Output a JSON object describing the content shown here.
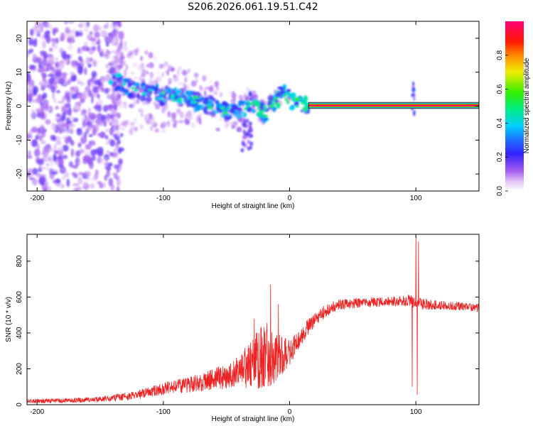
{
  "figure_title": "S206.2026.061.19.51.C42",
  "colors": {
    "snr_line": "#ee2222",
    "background": "#ffffff",
    "axis": "#000000"
  },
  "chart_data": [
    {
      "type": "heatmap",
      "title": "",
      "xlabel": "Height of straight line (km)",
      "ylabel": "Frequency (Hz)",
      "xlim": [
        -208,
        150
      ],
      "ylim": [
        -25,
        25
      ],
      "xticks": [
        -200,
        -100,
        0,
        100
      ],
      "xtick_labels": [
        "-200",
        "-100",
        "0",
        "100"
      ],
      "yticks": [
        20,
        10,
        0,
        -10,
        -20
      ],
      "ytick_labels": [
        "20",
        "10",
        "0",
        "-10",
        "-20"
      ],
      "colorbar": {
        "label": "Normalized spectral amplitude",
        "range": [
          0,
          1
        ],
        "ticks": [
          0.0,
          0.2,
          0.4,
          0.6,
          0.8
        ],
        "tick_labels": [
          "0.0",
          "0.2",
          "0.4",
          "0.6",
          "0.8"
        ]
      },
      "trace": {
        "x": [
          -140,
          -125,
          -110,
          -100,
          -90,
          -80,
          -70,
          -60,
          -50,
          -40,
          -35,
          -30,
          -25,
          -20,
          -15,
          -10,
          -5,
          0,
          5,
          10,
          15,
          150
        ],
        "freq": [
          8,
          5,
          4,
          3,
          3,
          2,
          1,
          0,
          -1,
          -2,
          0,
          2,
          -1,
          -2,
          0,
          2,
          4,
          2,
          1,
          0.5,
          0.2,
          0.2
        ]
      },
      "band": {
        "x_start": 15,
        "x_end": 150,
        "freq": 0.2,
        "half_width_hz": 0.9
      },
      "spike": {
        "x": 98,
        "freq_range": [
          -3,
          7
        ]
      }
    },
    {
      "type": "line",
      "title": "",
      "xlabel": "Height of straight line (km)",
      "ylabel": "SNR (10 * v/v)",
      "xlim": [
        -208,
        150
      ],
      "ylim": [
        0,
        950
      ],
      "xticks": [
        -200,
        -100,
        0,
        100
      ],
      "xtick_labels": [
        "-200",
        "-100",
        "0",
        "100"
      ],
      "yticks": [
        0,
        200,
        400,
        600,
        800
      ],
      "ytick_labels": [
        "0",
        "200",
        "400",
        "600",
        "800"
      ],
      "series": [
        {
          "name": "SNR",
          "envelope_x": [
            -208,
            -180,
            -150,
            -120,
            -100,
            -80,
            -60,
            -40,
            -30,
            -20,
            -10,
            0,
            10,
            20,
            30,
            40,
            60,
            80,
            90,
            95,
            105,
            110,
            120,
            150
          ],
          "envelope_mean": [
            20,
            22,
            30,
            55,
            90,
            110,
            140,
            180,
            230,
            280,
            260,
            290,
            390,
            480,
            530,
            560,
            570,
            575,
            580,
            580,
            560,
            560,
            555,
            540
          ],
          "envelope_noise": [
            12,
            12,
            15,
            25,
            35,
            45,
            60,
            90,
            140,
            200,
            140,
            70,
            50,
            40,
            35,
            30,
            28,
            28,
            30,
            35,
            35,
            30,
            25,
            22
          ],
          "peaks": [
            {
              "x": -15,
              "y": 670
            },
            {
              "x": -28,
              "y": 480
            },
            {
              "x": -9,
              "y": 560
            },
            {
              "x": 100,
              "y": 940
            },
            {
              "x": 102,
              "y": 910
            },
            {
              "x": 101,
              "y": 55
            },
            {
              "x": 97,
              "y": 100
            }
          ]
        }
      ]
    }
  ]
}
